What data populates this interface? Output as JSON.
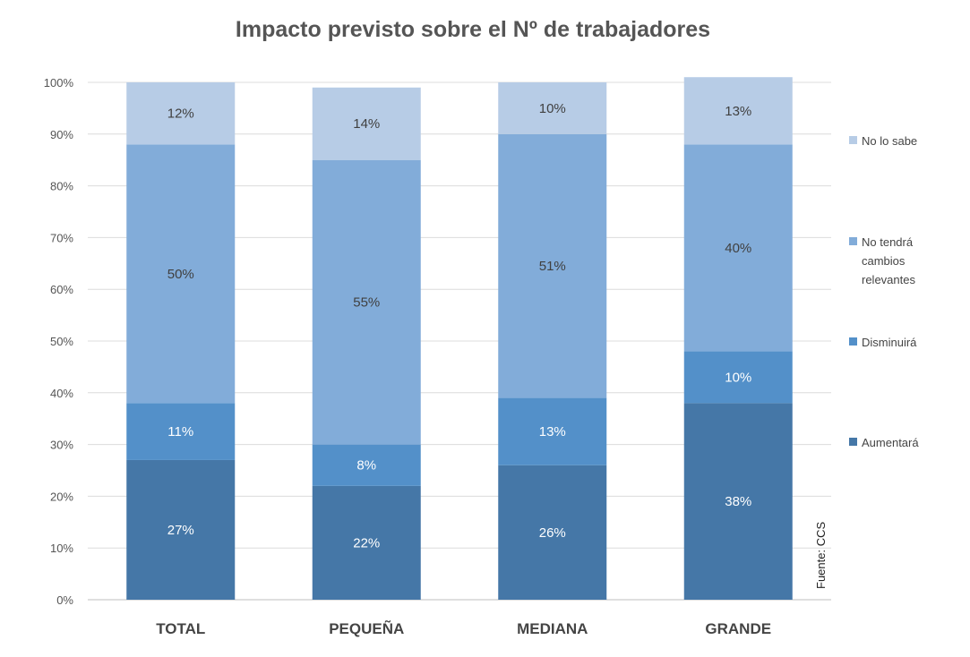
{
  "chart_data": {
    "type": "bar",
    "stacked": true,
    "title": "Impacto previsto sobre el Nº de trabajadores",
    "categories": [
      "TOTAL",
      "PEQUEÑA",
      "MEDIANA",
      "GRANDE"
    ],
    "y_ticks": [
      "0%",
      "10%",
      "20%",
      "30%",
      "40%",
      "50%",
      "60%",
      "70%",
      "80%",
      "90%",
      "100%"
    ],
    "ylim": [
      0,
      100
    ],
    "grid": true,
    "legend_position": "right",
    "series": [
      {
        "name": "Aumentará",
        "color": "#4577a7",
        "values": [
          27,
          22,
          26,
          38
        ],
        "labels": [
          "27%",
          "22%",
          "26%",
          "38%"
        ]
      },
      {
        "name": "Disminuirá",
        "color": "#5390c9",
        "values": [
          11,
          8,
          13,
          10
        ],
        "labels": [
          "11%",
          "8%",
          "13%",
          "10%"
        ]
      },
      {
        "name": "No tendrá cambios relevantes",
        "color": "#82acd9",
        "values": [
          50,
          55,
          51,
          40
        ],
        "labels": [
          "50%",
          "55%",
          "51%",
          "40%"
        ]
      },
      {
        "name": "No lo sabe",
        "color": "#b7cce6",
        "values": [
          12,
          14,
          10,
          13
        ],
        "labels": [
          "12%",
          "14%",
          "10%",
          "13%"
        ]
      }
    ],
    "legend": [
      {
        "name": "No lo sabe",
        "lines": [
          "No lo sabe"
        ],
        "color": "#b7cce6"
      },
      {
        "name": "No tendrá cambios relevantes",
        "lines": [
          "No tendrá",
          "cambios",
          "relevantes"
        ],
        "color": "#82acd9"
      },
      {
        "name": "Disminuirá",
        "lines": [
          "Disminuirá"
        ],
        "color": "#5390c9"
      },
      {
        "name": "Aumentará",
        "lines": [
          "Aumentará"
        ],
        "color": "#4577a7"
      }
    ],
    "source": "Fuente: CCS"
  }
}
